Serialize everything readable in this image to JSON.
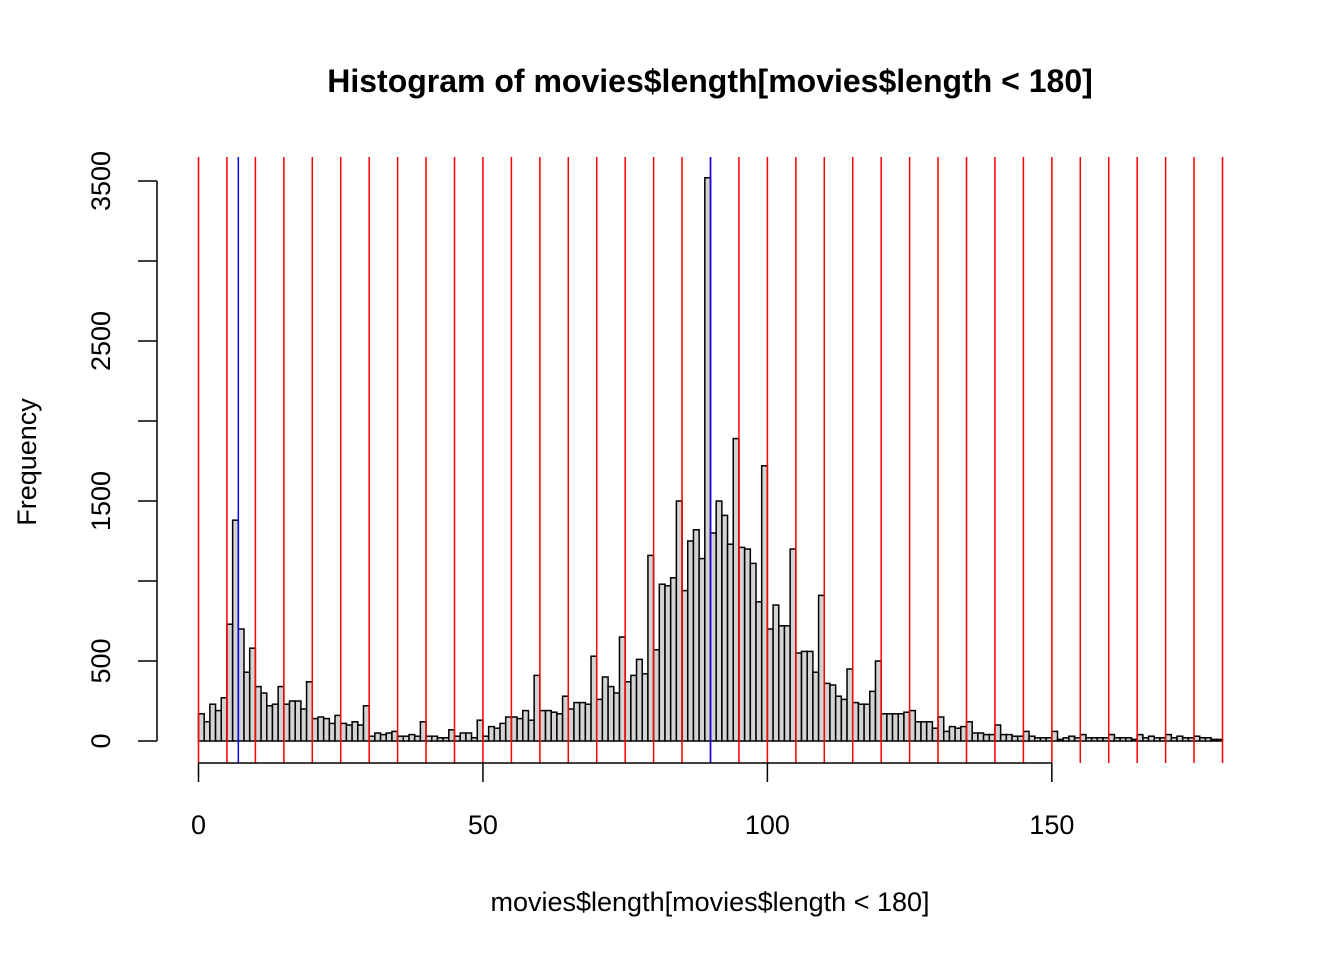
{
  "chart_data": {
    "type": "bar",
    "subtype": "histogram",
    "title": "Histogram of movies$length[movies$length < 180]",
    "xlabel": "movies$length[movies$length < 180]",
    "ylabel": "Frequency",
    "bin_width": 1,
    "bin_start": 0,
    "xlim": [
      0,
      180
    ],
    "ylim": [
      0,
      3500
    ],
    "x_ticks": [
      0,
      50,
      100,
      150
    ],
    "y_ticks": [
      0,
      500,
      1000,
      1500,
      2000,
      2500,
      3000,
      3500
    ],
    "y_tick_labels": [
      "0",
      "500",
      "",
      "1500",
      "",
      "2500",
      "",
      "3500"
    ],
    "values": [
      170,
      120,
      230,
      190,
      270,
      730,
      1380,
      700,
      430,
      580,
      340,
      300,
      220,
      230,
      340,
      230,
      250,
      250,
      200,
      370,
      140,
      150,
      140,
      110,
      160,
      110,
      100,
      120,
      100,
      220,
      30,
      50,
      40,
      50,
      60,
      30,
      30,
      40,
      30,
      120,
      30,
      30,
      20,
      20,
      70,
      30,
      50,
      50,
      20,
      130,
      30,
      90,
      80,
      110,
      150,
      150,
      140,
      190,
      130,
      410,
      190,
      190,
      180,
      170,
      280,
      200,
      240,
      240,
      230,
      530,
      260,
      400,
      340,
      300,
      650,
      370,
      410,
      510,
      420,
      1160,
      570,
      980,
      970,
      1020,
      1500,
      940,
      1250,
      1320,
      1140,
      3520,
      1300,
      1500,
      1410,
      1230,
      1890,
      1210,
      1200,
      1110,
      870,
      1720,
      700,
      850,
      720,
      720,
      1200,
      550,
      560,
      560,
      430,
      910,
      360,
      350,
      280,
      260,
      450,
      240,
      230,
      230,
      310,
      500,
      170,
      170,
      170,
      170,
      180,
      190,
      120,
      120,
      120,
      80,
      150,
      60,
      90,
      80,
      90,
      120,
      50,
      50,
      40,
      40,
      100,
      40,
      40,
      30,
      30,
      60,
      30,
      20,
      20,
      20,
      60,
      10,
      20,
      30,
      20,
      40,
      20,
      20,
      20,
      20,
      40,
      20,
      20,
      20,
      10,
      40,
      20,
      30,
      20,
      20,
      40,
      20,
      30,
      20,
      20,
      30,
      20,
      20,
      10,
      10
    ],
    "red_vlines": [
      0,
      5,
      10,
      15,
      20,
      25,
      30,
      35,
      40,
      45,
      50,
      55,
      60,
      65,
      70,
      75,
      80,
      85,
      90,
      95,
      100,
      105,
      110,
      115,
      120,
      125,
      130,
      135,
      140,
      145,
      150,
      155,
      160,
      165,
      170,
      175,
      180
    ],
    "blue_vlines": [
      7,
      90
    ],
    "colors": {
      "bar_fill": "#d3d3d3",
      "bar_stroke": "#000000",
      "red_line": "#ff0000",
      "blue_line": "#0000ff"
    },
    "grid": false,
    "legend": "none"
  }
}
